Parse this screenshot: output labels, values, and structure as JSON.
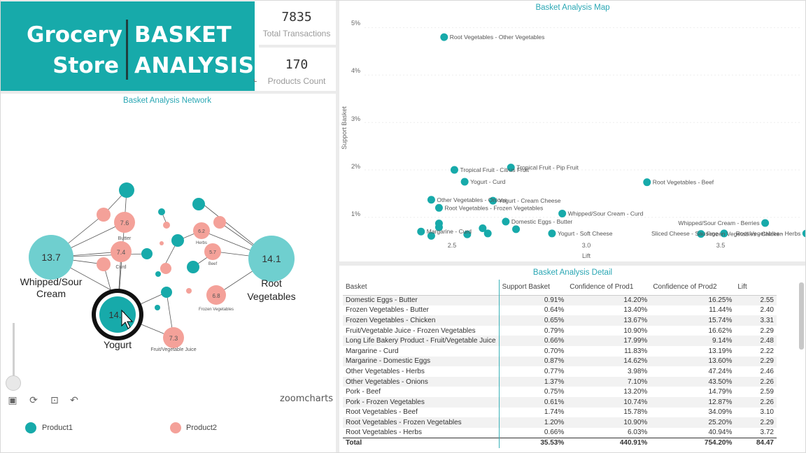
{
  "header": {
    "title_left": [
      "Grocery",
      "Store"
    ],
    "title_right": [
      "BASKET",
      "ANALYSIS"
    ]
  },
  "kpis": [
    {
      "value": "7835",
      "label": "Total Transactions"
    },
    {
      "value": "170",
      "label": "Products Count"
    }
  ],
  "network": {
    "title": "Basket Analysis Network",
    "legend": [
      {
        "label": "Product1",
        "color": "#17aaaa"
      },
      {
        "label": "Product2",
        "color": "#f4a199"
      }
    ],
    "brand": "zoomcharts",
    "big_nodes": [
      {
        "value": "13.7",
        "label_lines": [
          "Whipped/Sour",
          "Cream"
        ]
      },
      {
        "value": "14.1",
        "label_lines": [
          "Root",
          "Vegetables"
        ]
      },
      {
        "value": "14.1",
        "label_lines": [
          "Yogurt"
        ]
      }
    ],
    "small_nodes": [
      {
        "value": "7.6",
        "label": "Butter"
      },
      {
        "value": "7.4",
        "label": "Curd"
      },
      {
        "value": "6.8",
        "label": "Frozen Vegetables"
      },
      {
        "value": "7.3",
        "label": "Fruit/Vegetable Juice"
      },
      {
        "value": "6.2",
        "label": "Herbs"
      },
      {
        "value": "5.7",
        "label": "Beef"
      }
    ]
  },
  "scatter": {
    "title": "Basket Analysis Map",
    "xlabel": "Lift",
    "ylabel": "Support Basket",
    "x_ticks": [
      "2.5",
      "3.0",
      "3.5"
    ],
    "y_ticks": [
      "5%",
      "4%",
      "3%",
      "2%",
      "1%"
    ]
  },
  "chart_data": {
    "type": "scatter",
    "title": "Basket Analysis Map",
    "xlabel": "Lift",
    "ylabel": "Support Basket",
    "xlim": [
      2.0,
      3.7
    ],
    "ylim": [
      0.6,
      5.2
    ],
    "points": [
      {
        "label": "Root Vegetables - Other Vegetables",
        "x": 2.31,
        "y": 4.8
      },
      {
        "label": "Tropical Fruit - Citrus Fruit",
        "x": 2.35,
        "y": 2.0
      },
      {
        "label": "Tropical Fruit - Pip Fruit",
        "x": 2.57,
        "y": 2.05
      },
      {
        "label": "Yogurt - Curd",
        "x": 2.39,
        "y": 1.75
      },
      {
        "label": "Yogurt - Cream Cheese",
        "x": 2.5,
        "y": 1.35
      },
      {
        "label": "Root Vegetables - Beef",
        "x": 3.1,
        "y": 1.74
      },
      {
        "label": "Other Vegetables - Onions",
        "x": 2.26,
        "y": 1.37
      },
      {
        "label": "Root Vegetables - Frozen Vegetables",
        "x": 2.29,
        "y": 1.2
      },
      {
        "label": "Whipped/Sour Cream - Curd",
        "x": 2.77,
        "y": 1.08
      },
      {
        "label": "Fruit/Vegetable Juice - Frozen Vegetables",
        "x": 2.29,
        "y": 0.79
      },
      {
        "label": "Whipped/Sour Cream - Berries",
        "x": 3.56,
        "y": 0.88
      },
      {
        "label": "Frozen Vegetables - Chicken",
        "x": 3.31,
        "y": 0.65
      },
      {
        "label": "Root Vegetables - Herbs",
        "x": 3.72,
        "y": 0.66
      },
      {
        "label": "Sliced Cheese - Sausage",
        "x": 3.4,
        "y": 0.66
      },
      {
        "label": "Yogurt - Soft Cheese",
        "x": 2.73,
        "y": 0.66
      },
      {
        "label": "Domestic Eggs - Butter",
        "x": 2.55,
        "y": 0.91
      },
      {
        "label": "Frozen Vegetables - Butter",
        "x": 2.4,
        "y": 0.64
      },
      {
        "label": "Margarine - Curd",
        "x": 2.22,
        "y": 0.7
      },
      {
        "label": "Margarine - Domestic Eggs",
        "x": 2.29,
        "y": 0.87
      },
      {
        "label": "Pork - Beef",
        "x": 2.59,
        "y": 0.75
      },
      {
        "label": "Pork - Frozen Vegetables",
        "x": 2.26,
        "y": 0.61
      },
      {
        "label": "Other Vegetables - Herbs",
        "x": 2.46,
        "y": 0.77
      },
      {
        "label": "Long Life Bakery Product - Fruit/Vegetable Juice",
        "x": 2.48,
        "y": 0.66
      }
    ],
    "visible_labels": [
      "Root Vegetables - Other Vegetables",
      "Tropical Fruit - Citrus Fruit",
      "Tropical Fruit - Pip Fruit",
      "Yogurt - Curd",
      "Yogurt - Cream Cheese",
      "Root Vegetables - Beef",
      "Other Vegetables - Onions",
      "Root Vegetables - Frozen Vegetables",
      "Whipped/Sour Cream - Curd",
      "Whipped/Sour Cream - Berries",
      "Frozen Vegetables - Chicken",
      "Root Vegetables - Herbs",
      "Sliced Cheese - Sausage",
      "Yogurt - Soft Cheese",
      "Domestic Eggs - Butter",
      "Margarine - Curd"
    ],
    "partial_labels": [
      "Fruit/Vegetable Juice",
      "Frozen Vegetables",
      "Yo",
      "erries"
    ]
  },
  "table": {
    "title": "Basket Analysis Detail",
    "headers": [
      "Basket",
      "Support Basket",
      "Confidence of Prod1",
      "Confidence of Prod2",
      "Lift"
    ],
    "rows": [
      [
        "Domestic Eggs - Butter",
        "0.91%",
        "14.20%",
        "16.25%",
        "2.55"
      ],
      [
        "Frozen Vegetables - Butter",
        "0.64%",
        "13.40%",
        "11.44%",
        "2.40"
      ],
      [
        "Frozen Vegetables - Chicken",
        "0.65%",
        "13.67%",
        "15.74%",
        "3.31"
      ],
      [
        "Fruit/Vegetable Juice - Frozen Vegetables",
        "0.79%",
        "10.90%",
        "16.62%",
        "2.29"
      ],
      [
        "Long Life Bakery Product - Fruit/Vegetable Juice",
        "0.66%",
        "17.99%",
        "9.14%",
        "2.48"
      ],
      [
        "Margarine - Curd",
        "0.70%",
        "11.83%",
        "13.19%",
        "2.22"
      ],
      [
        "Margarine - Domestic Eggs",
        "0.87%",
        "14.62%",
        "13.60%",
        "2.29"
      ],
      [
        "Other Vegetables - Herbs",
        "0.77%",
        "3.98%",
        "47.24%",
        "2.46"
      ],
      [
        "Other Vegetables - Onions",
        "1.37%",
        "7.10%",
        "43.50%",
        "2.26"
      ],
      [
        "Pork - Beef",
        "0.75%",
        "13.20%",
        "14.79%",
        "2.59"
      ],
      [
        "Pork - Frozen Vegetables",
        "0.61%",
        "10.74%",
        "12.87%",
        "2.26"
      ],
      [
        "Root Vegetables - Beef",
        "1.74%",
        "15.78%",
        "34.09%",
        "3.10"
      ],
      [
        "Root Vegetables - Frozen Vegetables",
        "1.20%",
        "10.90%",
        "25.20%",
        "2.29"
      ],
      [
        "Root Vegetables - Herbs",
        "0.66%",
        "6.03%",
        "40.94%",
        "3.72"
      ]
    ],
    "total": [
      "Total",
      "35.53%",
      "440.91%",
      "754.20%",
      "84.47"
    ]
  }
}
